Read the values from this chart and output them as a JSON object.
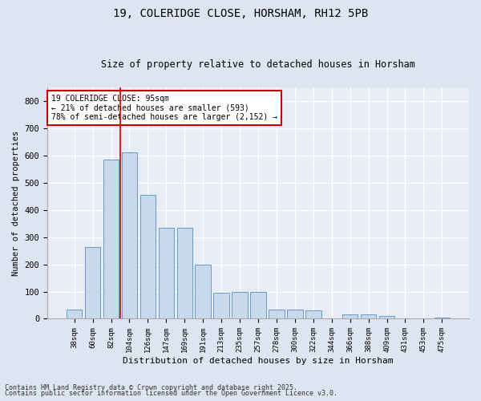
{
  "title1": "19, COLERIDGE CLOSE, HORSHAM, RH12 5PB",
  "title2": "Size of property relative to detached houses in Horsham",
  "xlabel": "Distribution of detached houses by size in Horsham",
  "ylabel": "Number of detached properties",
  "categories": [
    "38sqm",
    "60sqm",
    "82sqm",
    "104sqm",
    "126sqm",
    "147sqm",
    "169sqm",
    "191sqm",
    "213sqm",
    "235sqm",
    "257sqm",
    "278sqm",
    "300sqm",
    "322sqm",
    "344sqm",
    "366sqm",
    "388sqm",
    "409sqm",
    "431sqm",
    "453sqm",
    "475sqm"
  ],
  "values": [
    35,
    265,
    585,
    610,
    455,
    335,
    335,
    200,
    95,
    100,
    100,
    35,
    35,
    30,
    0,
    15,
    15,
    10,
    0,
    2,
    5
  ],
  "bar_color": "#c9d9ec",
  "bar_edge_color": "#6699cc",
  "red_line_x": 2.5,
  "annotation_text": "19 COLERIDGE CLOSE: 95sqm\n← 21% of detached houses are smaller (593)\n78% of semi-detached houses are larger (2,152) →",
  "annotation_box_color": "#ffffff",
  "annotation_box_edge_color": "#cc0000",
  "ylim": [
    0,
    850
  ],
  "yticks": [
    0,
    100,
    200,
    300,
    400,
    500,
    600,
    700,
    800
  ],
  "footnote1": "Contains HM Land Registry data © Crown copyright and database right 2025.",
  "footnote2": "Contains public sector information licensed under the Open Government Licence v3.0.",
  "background_color": "#dde5f0",
  "plot_bg_color": "#e8edf5"
}
